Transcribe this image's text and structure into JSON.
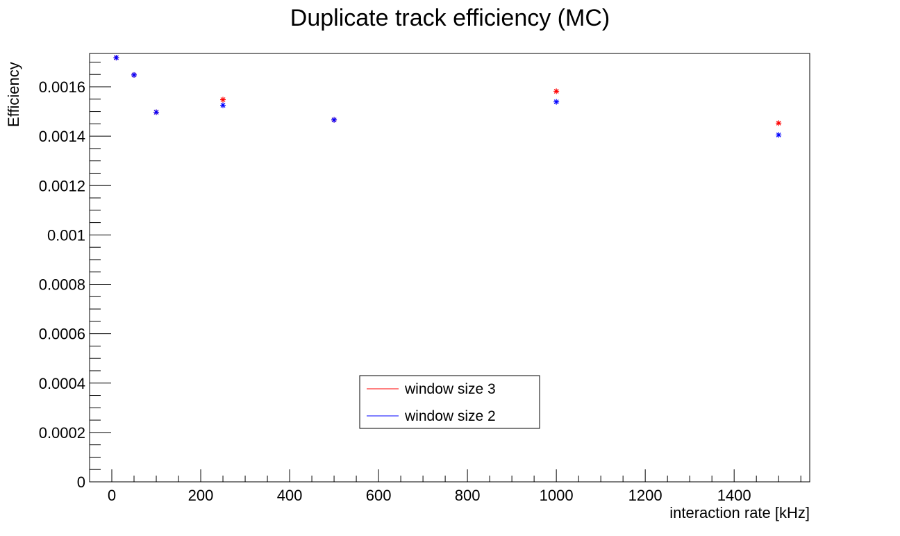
{
  "chart_data": {
    "type": "scatter",
    "title": "Duplicate track efficiency (MC)",
    "xlabel": "interaction rate [kHz]",
    "ylabel": "Efficiency",
    "xlim": [
      -50,
      1570
    ],
    "ylim": [
      0,
      0.001735
    ],
    "x_ticks": [
      0,
      200,
      400,
      600,
      800,
      1000,
      1200,
      1400
    ],
    "x_tick_labels": [
      "0",
      "200",
      "400",
      "600",
      "800",
      "1000",
      "1200",
      "1400"
    ],
    "y_ticks": [
      0,
      0.0002,
      0.0004,
      0.0006,
      0.0008,
      0.001,
      0.0012,
      0.0014,
      0.0016
    ],
    "y_tick_labels": [
      "0",
      "0.0002",
      "0.0004",
      "0.0006",
      "0.0008",
      "0.001",
      "0.0012",
      "0.0014",
      "0.0016"
    ],
    "grid": false,
    "legend_position": "bottom-center",
    "series": [
      {
        "name": "window size 3",
        "color": "#ff0000",
        "x": [
          10,
          50,
          100,
          250,
          500,
          1000,
          1500
        ],
        "y": [
          0.001718,
          0.001648,
          0.001497,
          0.001548,
          0.001466,
          0.001582,
          0.001453
        ]
      },
      {
        "name": "window size 2",
        "color": "#0000ff",
        "x": [
          10,
          50,
          100,
          250,
          500,
          1000,
          1500
        ],
        "y": [
          0.001718,
          0.001648,
          0.001497,
          0.001525,
          0.001466,
          0.001539,
          0.001405
        ]
      }
    ]
  }
}
